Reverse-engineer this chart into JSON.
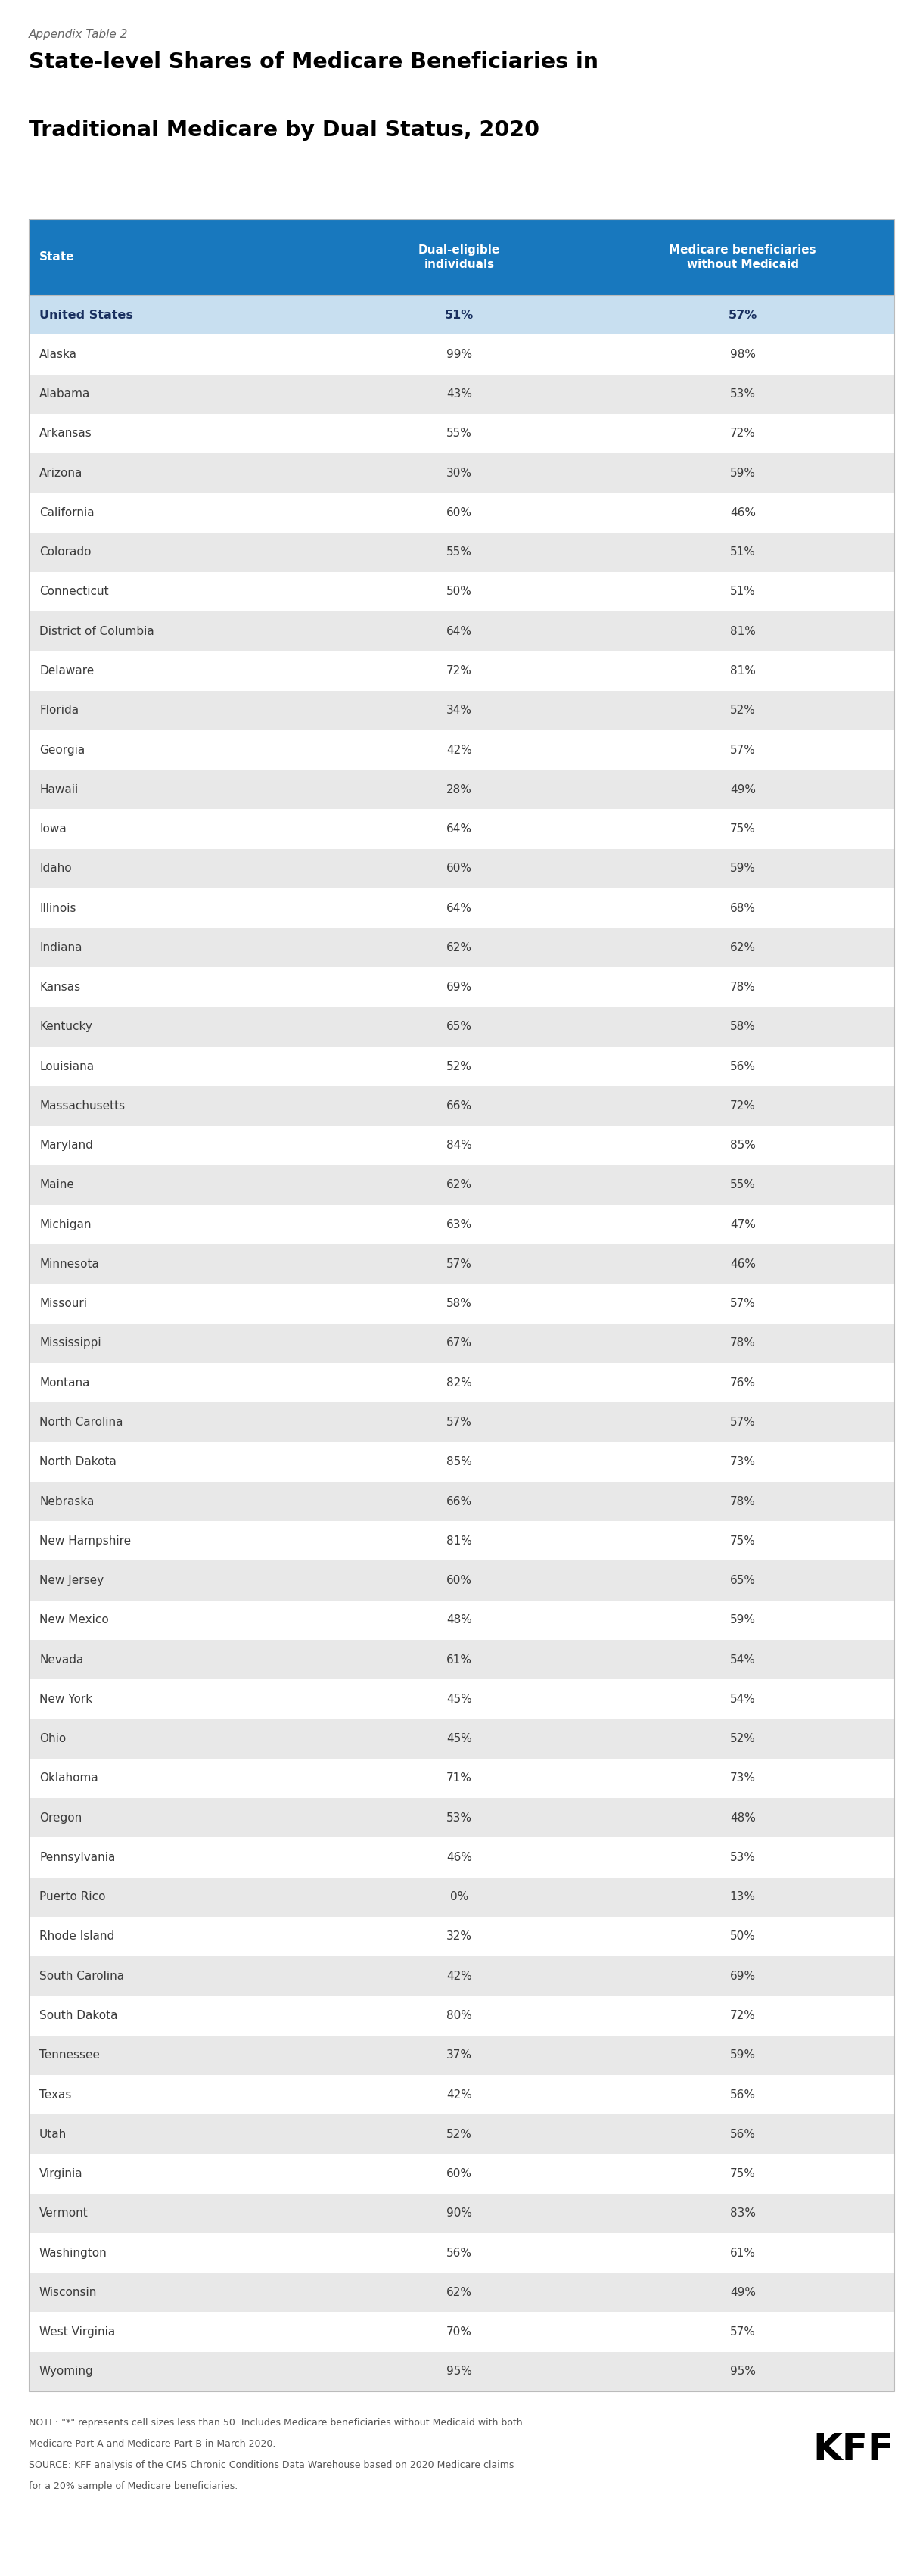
{
  "appendix_label": "Appendix Table 2",
  "title_line1": "State-level Shares of Medicare Beneficiaries in",
  "title_line2": "Traditional Medicare by Dual Status, 2020",
  "col1_header": "State",
  "col2_header": "Dual-eligible\nindividuals",
  "col3_header": "Medicare beneficiaries\nwithout Medicaid",
  "note_line1": "NOTE: \"*\" represents cell sizes less than 50. Includes Medicare beneficiaries without Medicaid with both",
  "note_line2": "Medicare Part A and Medicare Part B in March 2020.",
  "note_line3": "SOURCE: KFF analysis of the CMS Chronic Conditions Data Warehouse based on 2020 Medicare claims",
  "note_line4": "for a 20% sample of Medicare beneficiaries.",
  "header_bg": "#1878be",
  "header_text": "#ffffff",
  "us_row_bg": "#c8dff0",
  "alt_row_bg": "#e8e8e8",
  "white_row_bg": "#ffffff",
  "border_color": "#bbbbbb",
  "body_text_color": "#3a3a3a",
  "note_text_color": "#555555",
  "rows": [
    [
      "United States",
      "51%",
      "57%",
      true
    ],
    [
      "Alaska",
      "99%",
      "98%",
      false
    ],
    [
      "Alabama",
      "43%",
      "53%",
      false
    ],
    [
      "Arkansas",
      "55%",
      "72%",
      false
    ],
    [
      "Arizona",
      "30%",
      "59%",
      false
    ],
    [
      "California",
      "60%",
      "46%",
      false
    ],
    [
      "Colorado",
      "55%",
      "51%",
      false
    ],
    [
      "Connecticut",
      "50%",
      "51%",
      false
    ],
    [
      "District of Columbia",
      "64%",
      "81%",
      false
    ],
    [
      "Delaware",
      "72%",
      "81%",
      false
    ],
    [
      "Florida",
      "34%",
      "52%",
      false
    ],
    [
      "Georgia",
      "42%",
      "57%",
      false
    ],
    [
      "Hawaii",
      "28%",
      "49%",
      false
    ],
    [
      "Iowa",
      "64%",
      "75%",
      false
    ],
    [
      "Idaho",
      "60%",
      "59%",
      false
    ],
    [
      "Illinois",
      "64%",
      "68%",
      false
    ],
    [
      "Indiana",
      "62%",
      "62%",
      false
    ],
    [
      "Kansas",
      "69%",
      "78%",
      false
    ],
    [
      "Kentucky",
      "65%",
      "58%",
      false
    ],
    [
      "Louisiana",
      "52%",
      "56%",
      false
    ],
    [
      "Massachusetts",
      "66%",
      "72%",
      false
    ],
    [
      "Maryland",
      "84%",
      "85%",
      false
    ],
    [
      "Maine",
      "62%",
      "55%",
      false
    ],
    [
      "Michigan",
      "63%",
      "47%",
      false
    ],
    [
      "Minnesota",
      "57%",
      "46%",
      false
    ],
    [
      "Missouri",
      "58%",
      "57%",
      false
    ],
    [
      "Mississippi",
      "67%",
      "78%",
      false
    ],
    [
      "Montana",
      "82%",
      "76%",
      false
    ],
    [
      "North Carolina",
      "57%",
      "57%",
      false
    ],
    [
      "North Dakota",
      "85%",
      "73%",
      false
    ],
    [
      "Nebraska",
      "66%",
      "78%",
      false
    ],
    [
      "New Hampshire",
      "81%",
      "75%",
      false
    ],
    [
      "New Jersey",
      "60%",
      "65%",
      false
    ],
    [
      "New Mexico",
      "48%",
      "59%",
      false
    ],
    [
      "Nevada",
      "61%",
      "54%",
      false
    ],
    [
      "New York",
      "45%",
      "54%",
      false
    ],
    [
      "Ohio",
      "45%",
      "52%",
      false
    ],
    [
      "Oklahoma",
      "71%",
      "73%",
      false
    ],
    [
      "Oregon",
      "53%",
      "48%",
      false
    ],
    [
      "Pennsylvania",
      "46%",
      "53%",
      false
    ],
    [
      "Puerto Rico",
      "0%",
      "13%",
      false
    ],
    [
      "Rhode Island",
      "32%",
      "50%",
      false
    ],
    [
      "South Carolina",
      "42%",
      "69%",
      false
    ],
    [
      "South Dakota",
      "80%",
      "72%",
      false
    ],
    [
      "Tennessee",
      "37%",
      "59%",
      false
    ],
    [
      "Texas",
      "42%",
      "56%",
      false
    ],
    [
      "Utah",
      "52%",
      "56%",
      false
    ],
    [
      "Virginia",
      "60%",
      "75%",
      false
    ],
    [
      "Vermont",
      "90%",
      "83%",
      false
    ],
    [
      "Washington",
      "56%",
      "61%",
      false
    ],
    [
      "Wisconsin",
      "62%",
      "49%",
      false
    ],
    [
      "West Virginia",
      "70%",
      "57%",
      false
    ],
    [
      "Wyoming",
      "95%",
      "95%",
      false
    ]
  ]
}
